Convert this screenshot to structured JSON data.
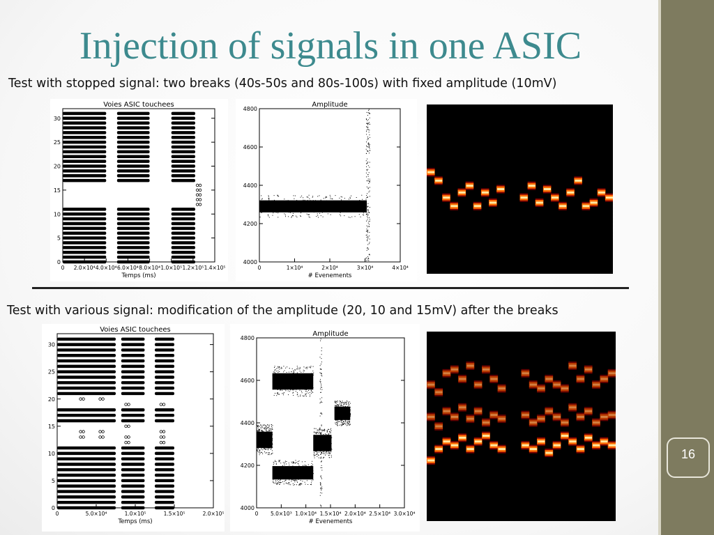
{
  "title": "Injection of signals in one ASIC",
  "caption_top": "Test with stopped signal: two breaks (40s-50s and 80s-100s) with fixed amplitude (10mV)",
  "caption_bottom": "Test with various signal: modification of the amplitude (20, 10 and 15mV) after the breaks",
  "page_number": "16",
  "colors": {
    "title": "#3d8a8e",
    "sidebar": "#7e7b5f",
    "heat_high": "#ffe9a0",
    "heat_mid": "#ff6a00",
    "heat_low": "#8b0000"
  },
  "chart_data": [
    {
      "id": "top-channels",
      "type": "scatter",
      "title": "Voies ASIC touchees",
      "xlabel": "Temps (ms)",
      "ylabel": "",
      "xlim": [
        0,
        140000
      ],
      "ylim": [
        0,
        32
      ],
      "x_tick_labels": [
        "0",
        "2.0×10⁴",
        "4.0×10⁴",
        "6.0×10⁴",
        "8.0×10⁴",
        "1.0×10⁵",
        "1.2×10⁵",
        "1.4×10⁵"
      ],
      "y_ticks": [
        0,
        5,
        10,
        15,
        20,
        25,
        30
      ],
      "bands": [
        {
          "x": [
            0,
            40000
          ],
          "channels": [
            0,
            1,
            2,
            3,
            4,
            5,
            6,
            7,
            8,
            9,
            10,
            11,
            17,
            18,
            19,
            20,
            21,
            22,
            23,
            24,
            25,
            26,
            27,
            28,
            29,
            30,
            31
          ]
        },
        {
          "x": [
            50000,
            80000
          ],
          "channels": [
            0,
            1,
            2,
            3,
            4,
            5,
            6,
            7,
            8,
            9,
            10,
            11,
            17,
            18,
            19,
            20,
            21,
            22,
            23,
            24,
            25,
            26,
            27,
            28,
            29,
            30,
            31
          ]
        },
        {
          "x": [
            100000,
            122000
          ],
          "channels": [
            0,
            1,
            2,
            3,
            4,
            5,
            6,
            7,
            8,
            9,
            10,
            11,
            17,
            18,
            19,
            20,
            21,
            22,
            23,
            24,
            25,
            26,
            27,
            28,
            29,
            30,
            31
          ]
        }
      ],
      "sparse_points": [
        {
          "x": 124000,
          "channels": [
            12,
            13,
            14,
            15,
            16
          ]
        }
      ]
    },
    {
      "id": "top-amplitude",
      "type": "scatter",
      "title": "Amplitude",
      "xlabel": "# Evenements",
      "ylabel": "",
      "xlim": [
        0,
        40000
      ],
      "ylim": [
        4000,
        4800
      ],
      "x_tick_labels": [
        "0",
        "1×10⁴",
        "2×10⁴",
        "3×10⁴",
        "4×10⁴"
      ],
      "y_ticks": [
        4000,
        4200,
        4400,
        4600,
        4800
      ],
      "bands": [
        {
          "x": [
            0,
            30500
          ],
          "y_center": 4290,
          "y_spread": 45
        }
      ],
      "spikes_x": [
        30500,
        31000
      ]
    },
    {
      "id": "top-heatmap",
      "type": "heatmap",
      "title": "",
      "rows": 1,
      "traces": [
        {
          "row_level": 0.63,
          "points": [
            0.4,
            0.45,
            0.55,
            0.6,
            0.52,
            0.48,
            0.6,
            0.52,
            0.58,
            0.5,
            null,
            null,
            0.55,
            0.48,
            0.58,
            0.5,
            0.55,
            0.6,
            0.52,
            0.45,
            0.6,
            0.58,
            0.52,
            0.55
          ]
        }
      ]
    },
    {
      "id": "bottom-channels",
      "type": "scatter",
      "title": "Voies ASIC touchees",
      "xlabel": "Temps (ms)",
      "ylabel": "",
      "xlim": [
        0,
        200000
      ],
      "ylim": [
        0,
        32
      ],
      "x_tick_labels": [
        "0",
        "5.0×10⁴",
        "1.0×10⁵",
        "1.5×10⁵",
        "2.0×10⁵"
      ],
      "y_ticks": [
        0,
        5,
        10,
        15,
        20,
        25,
        30
      ],
      "bands": [
        {
          "x": [
            0,
            75000
          ],
          "channels": [
            0,
            1,
            2,
            3,
            4,
            5,
            6,
            7,
            8,
            9,
            10,
            11,
            16,
            17,
            18,
            21,
            22,
            23,
            24,
            25,
            26,
            27,
            28,
            29,
            30,
            31
          ]
        },
        {
          "x": [
            82000,
            112000
          ],
          "channels": [
            0,
            1,
            2,
            3,
            4,
            5,
            6,
            7,
            8,
            9,
            10,
            11,
            16,
            17,
            18,
            21,
            22,
            23,
            24,
            25,
            26,
            27,
            28,
            29,
            30,
            31
          ]
        },
        {
          "x": [
            125000,
            150000
          ],
          "channels": [
            0,
            1,
            2,
            3,
            4,
            5,
            6,
            7,
            8,
            9,
            10,
            11,
            16,
            17,
            18,
            21,
            22,
            23,
            24,
            25,
            26,
            27,
            28,
            29,
            30,
            31
          ]
        }
      ],
      "sparse_points": [
        {
          "x": 30000,
          "channels": [
            13,
            14,
            20
          ]
        },
        {
          "x": 55000,
          "channels": [
            13,
            14,
            20
          ]
        },
        {
          "x": 88000,
          "channels": [
            12,
            13,
            15,
            19
          ]
        },
        {
          "x": 133000,
          "channels": [
            12,
            13,
            14,
            19
          ]
        }
      ]
    },
    {
      "id": "bottom-amplitude",
      "type": "scatter",
      "title": "Amplitude",
      "xlabel": "# Evenements",
      "ylabel": "",
      "xlim": [
        0,
        30000
      ],
      "ylim": [
        4000,
        4800
      ],
      "x_tick_labels": [
        "0",
        "5.0×10³",
        "1.0×10⁴",
        "1.5×10⁴",
        "2.0×10⁴",
        "2.5×10⁴",
        "3.0×10⁴"
      ],
      "y_ticks": [
        4000,
        4200,
        4400,
        4600,
        4800
      ],
      "bands": [
        {
          "x": [
            0,
            3200
          ],
          "y_center": 4320,
          "y_spread": 55
        },
        {
          "x": [
            3200,
            11500
          ],
          "y_center": 4595,
          "y_spread": 55
        },
        {
          "x": [
            3200,
            11500
          ],
          "y_center": 4165,
          "y_spread": 45
        },
        {
          "x": [
            11500,
            15200
          ],
          "y_center": 4305,
          "y_spread": 55
        },
        {
          "x": [
            15800,
            19000
          ],
          "y_center": 4445,
          "y_spread": 45
        }
      ],
      "spikes_x": [
        13000
      ]
    },
    {
      "id": "bottom-heatmap",
      "type": "heatmap",
      "title": "",
      "rows": 3,
      "traces": [
        {
          "row_level": 0.22,
          "points": [
            0.28,
            0.32,
            0.22,
            0.2,
            0.25,
            0.18,
            0.28,
            0.2,
            0.25,
            0.3,
            null,
            null,
            0.22,
            0.28,
            0.3,
            0.25,
            0.28,
            0.3,
            0.18,
            0.25,
            0.2,
            0.28,
            0.25,
            0.22
          ]
        },
        {
          "row_level": 0.45,
          "points": [
            0.45,
            0.5,
            0.42,
            0.45,
            0.4,
            0.46,
            0.42,
            0.48,
            0.44,
            0.46,
            null,
            null,
            0.44,
            0.48,
            0.46,
            0.42,
            0.45,
            0.48,
            0.4,
            0.45,
            0.42,
            0.48,
            0.45,
            0.44
          ]
        },
        {
          "row_level": 0.6,
          "points": [
            0.68,
            0.62,
            0.58,
            0.6,
            0.56,
            0.62,
            0.58,
            0.55,
            0.6,
            0.62,
            null,
            null,
            0.6,
            0.62,
            0.58,
            0.64,
            0.6,
            0.55,
            0.58,
            0.62,
            0.56,
            0.6,
            0.58,
            0.6
          ]
        }
      ]
    }
  ]
}
